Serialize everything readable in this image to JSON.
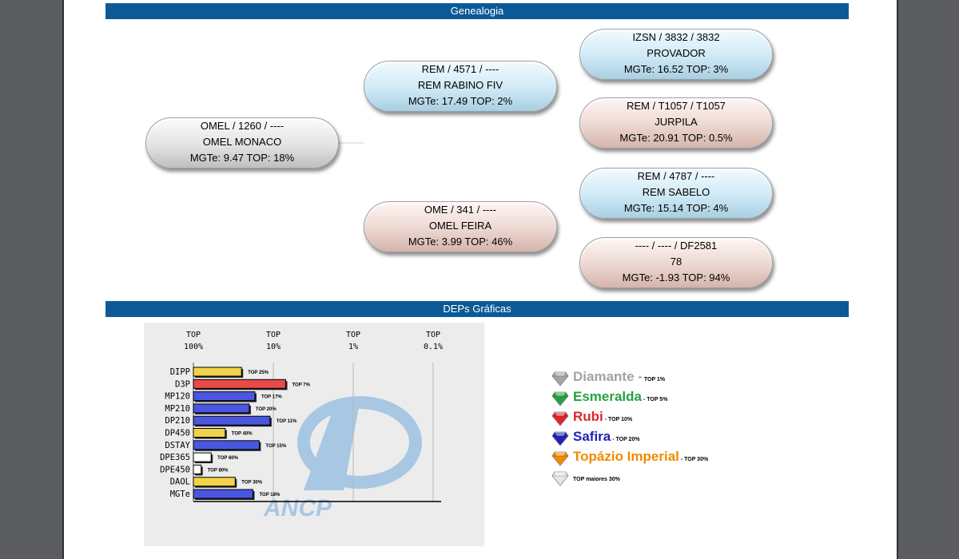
{
  "sections": {
    "genealogia": "Genealogia",
    "deps": "DEPs Gráficas"
  },
  "genealogy": {
    "subject": {
      "id": "OMEL / 1260 / ----",
      "name": "OMEL MONACO",
      "stats": "MGTe: 9.47   TOP: 18%"
    },
    "sire": {
      "id": "REM / 4571 / ----",
      "name": "REM RABINO FIV",
      "stats": "MGTe: 17.49   TOP: 2%"
    },
    "dam": {
      "id": "OME / 341 / ----",
      "name": "OMEL FEIRA",
      "stats": "MGTe: 3.99   TOP: 46%"
    },
    "sire_sire": {
      "id": "IZSN / 3832 / 3832",
      "name": "PROVADOR",
      "stats": "MGTe: 16.52   TOP: 3%"
    },
    "sire_dam": {
      "id": "REM / T1057 / T1057",
      "name": "JURPILA",
      "stats": "MGTe: 20.91   TOP: 0.5%"
    },
    "dam_sire": {
      "id": "REM / 4787 / ----",
      "name": "REM SABELO",
      "stats": "MGTe: 15.14   TOP: 4%"
    },
    "dam_dam": {
      "id": "---- / ---- / DF2581",
      "name": "78",
      "stats": "MGTe: -1.93   TOP: 94%"
    }
  },
  "chart_data": {
    "type": "bar",
    "orientation": "horizontal",
    "scale": "log-percentile",
    "axis_ticks": [
      {
        "top": "TOP",
        "val": "100%",
        "pct": 100
      },
      {
        "top": "TOP",
        "val": "10%",
        "pct": 10
      },
      {
        "top": "TOP",
        "val": "1%",
        "pct": 1
      },
      {
        "top": "TOP",
        "val": "0.1%",
        "pct": 0.1
      }
    ],
    "categories": [
      "DIPP",
      "D3P",
      "MP120",
      "MP210",
      "DP210",
      "DP450",
      "DSTAY",
      "DPE365",
      "DPE450",
      "DAOL",
      "MGTe"
    ],
    "values": [
      25,
      7,
      17,
      20,
      11,
      40,
      15,
      60,
      80,
      30,
      18
    ],
    "labels": [
      "TOP 25%",
      "TOP 7%",
      "TOP 17%",
      "TOP 20%",
      "TOP 11%",
      "TOP 40%",
      "TOP 15%",
      "TOP 60%",
      "TOP 80%",
      "TOP 30%",
      "TOP 18%"
    ],
    "colors": [
      "#f2d24b",
      "#e84a4a",
      "#4a56e0",
      "#4a56e0",
      "#4a56e0",
      "#f2d24b",
      "#4a56e0",
      "#ffffff",
      "#ffffff",
      "#f2d24b",
      "#4a56e0"
    ],
    "watermark": "ANCP",
    "grid": true
  },
  "legend": [
    {
      "name": "Diamante",
      "suffix": " -",
      "top": " TOP 1%",
      "color": "#a3a3a3",
      "icon": "diamond-gem-icon"
    },
    {
      "name": "Esmeralda",
      "suffix": "",
      "top": " - TOP 5%",
      "color": "#27a043",
      "icon": "emerald-gem-icon"
    },
    {
      "name": "Rubi",
      "suffix": "",
      "top": " - TOP 10%",
      "color": "#e0242c",
      "icon": "ruby-gem-icon"
    },
    {
      "name": "Safira",
      "suffix": "",
      "top": " - TOP 20%",
      "color": "#1f22b8",
      "icon": "sapphire-gem-icon"
    },
    {
      "name": "Topázio Imperial",
      "suffix": "",
      "top": " - TOP 30%",
      "color": "#f08a00",
      "icon": "topaz-gem-icon"
    },
    {
      "name": "",
      "suffix": "",
      "top": "TOP maiores 30%",
      "color": "#e6e6e6",
      "icon": "white-gem-icon"
    }
  ]
}
